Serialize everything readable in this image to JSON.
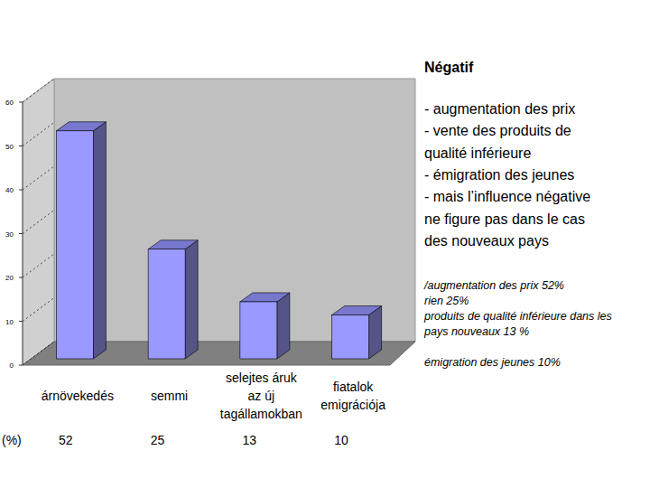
{
  "chart_data": {
    "type": "bar",
    "title": "Négatif",
    "categories": [
      "árnövekedés",
      "semmi",
      "selejtes áruk\naz új\ntagállamokban",
      "fiatalok\nemigrációja"
    ],
    "values": [
      52,
      25,
      13,
      10
    ],
    "color": "#9999ff",
    "ylim": [
      0,
      60
    ],
    "yticks": [
      0,
      10,
      20,
      30,
      40,
      50,
      60
    ],
    "grid": true,
    "data_labels": true,
    "annotations": {
      "row_label": "(%)",
      "bullets": [
        "- augmentation des prix",
        "- vente des produits de",
        "qualité inférieure",
        "- émigration des jeunes",
        "- mais l’influence négative",
        "ne figure pas dans le cas",
        "des nouveaux pays"
      ],
      "notes": [
        "/augmentation des prix 52%",
        "rien 25%",
        "produits de qualité inférieure dans les",
        "pays nouveaux 13 %",
        "",
        "émigration des jeunes 10%"
      ]
    }
  }
}
